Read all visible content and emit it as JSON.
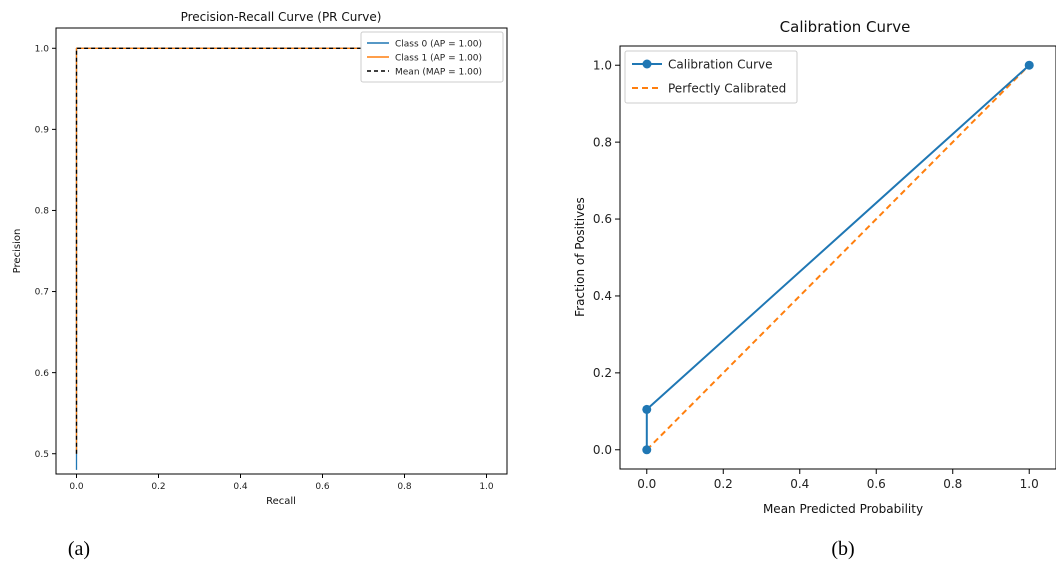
{
  "chart_data": [
    {
      "type": "line",
      "title": "Precision-Recall Curve (PR Curve)",
      "xlabel": "Recall",
      "ylabel": "Precision",
      "xlim": [
        -0.05,
        1.05
      ],
      "ylim": [
        0.475,
        1.025
      ],
      "xticks": [
        "0.0",
        "0.2",
        "0.4",
        "0.6",
        "0.8",
        "1.0"
      ],
      "yticks": [
        "0.5",
        "0.6",
        "0.7",
        "0.8",
        "0.9",
        "1.0"
      ],
      "grid": false,
      "legend_position": "top-right",
      "series": [
        {
          "name": "Class 0 (AP = 1.00)",
          "color": "#1f77b4",
          "dash": "solid",
          "x": [
            0.0,
            0.0,
            0.01,
            1.0
          ],
          "y": [
            0.48,
            1.0,
            1.0,
            1.0
          ]
        },
        {
          "name": "Class 1 (AP = 1.00)",
          "color": "#ff7f0e",
          "dash": "solid",
          "x": [
            0.0,
            0.0,
            0.01,
            1.0
          ],
          "y": [
            0.5,
            1.0,
            1.0,
            1.0
          ]
        },
        {
          "name": "Mean (MAP = 1.00)",
          "color": "#000000",
          "dash": "dashed",
          "x": [
            0.0,
            0.0,
            0.01,
            1.0
          ],
          "y": [
            0.5,
            1.0,
            1.0,
            1.0
          ]
        }
      ],
      "panel_label": "(a)"
    },
    {
      "type": "line",
      "title": "Calibration Curve",
      "xlabel": "Mean Predicted Probability",
      "ylabel": "Fraction of Positives",
      "xlim": [
        -0.07,
        1.07
      ],
      "ylim": [
        -0.05,
        1.05
      ],
      "xticks": [
        "0.0",
        "0.2",
        "0.4",
        "0.6",
        "0.8",
        "1.0"
      ],
      "yticks": [
        "0.0",
        "0.2",
        "0.4",
        "0.6",
        "0.8",
        "1.0"
      ],
      "grid": false,
      "legend_position": "top-left",
      "series": [
        {
          "name": "Calibration Curve",
          "color": "#1f77b4",
          "dash": "solid",
          "markers": true,
          "x": [
            0.0,
            0.0,
            1.0
          ],
          "y": [
            0.0,
            0.105,
            1.0
          ]
        },
        {
          "name": "Perfectly Calibrated",
          "color": "#ff7f0e",
          "dash": "dashed",
          "markers": false,
          "x": [
            0.0,
            1.0
          ],
          "y": [
            0.0,
            1.0
          ]
        }
      ],
      "panel_label": "(b)"
    }
  ]
}
